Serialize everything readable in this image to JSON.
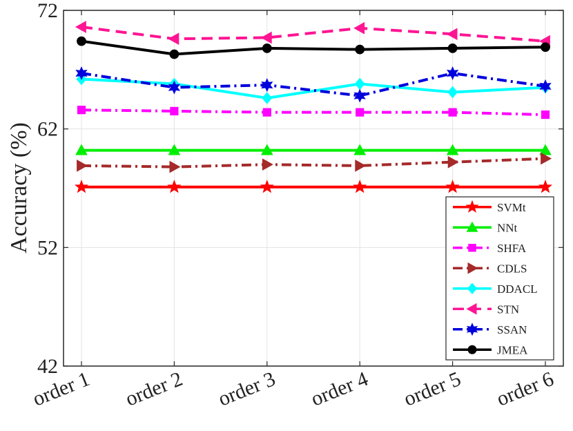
{
  "chart_data": {
    "type": "line",
    "title": "",
    "xlabel": "",
    "ylabel": "Accuracy (%)",
    "categories": [
      "order 1",
      "order 2",
      "order 3",
      "order 4",
      "order 5",
      "order 6"
    ],
    "ylim": [
      42,
      72
    ],
    "yticks": [
      "42",
      "52",
      "62",
      "72"
    ],
    "grid": true,
    "legend_position": "bottom-right",
    "series": [
      {
        "name": "SVMt",
        "values": [
          57.1,
          57.1,
          57.1,
          57.1,
          57.1,
          57.1
        ],
        "color": "#ff0000",
        "dash": "solid",
        "marker": "star5"
      },
      {
        "name": "NNt",
        "values": [
          60.2,
          60.2,
          60.2,
          60.2,
          60.2,
          60.2
        ],
        "color": "#00ee00",
        "dash": "solid",
        "marker": "triangle-up"
      },
      {
        "name": "SHFA",
        "values": [
          63.6,
          63.5,
          63.4,
          63.4,
          63.4,
          63.2
        ],
        "color": "#ff00ff",
        "dash": "dashdot",
        "marker": "square"
      },
      {
        "name": "CDLS",
        "values": [
          58.9,
          58.8,
          59.0,
          58.9,
          59.2,
          59.5
        ],
        "color": "#a52a2a",
        "dash": "dashdot",
        "marker": "triangle-right"
      },
      {
        "name": "DDACL",
        "values": [
          66.2,
          65.8,
          64.6,
          65.8,
          65.1,
          65.5
        ],
        "color": "#00ffff",
        "dash": "solid",
        "marker": "diamond"
      },
      {
        "name": "STN",
        "values": [
          70.6,
          69.6,
          69.7,
          70.5,
          70.0,
          69.4
        ],
        "color": "#ff1493",
        "dash": "dashed",
        "marker": "triangle-left"
      },
      {
        "name": "SSAN",
        "values": [
          66.7,
          65.5,
          65.7,
          64.8,
          66.7,
          65.6
        ],
        "color": "#0000dd",
        "dash": "dashdot",
        "marker": "star6"
      },
      {
        "name": "JMEA",
        "values": [
          69.4,
          68.3,
          68.8,
          68.7,
          68.8,
          68.9
        ],
        "color": "#000000",
        "dash": "solid",
        "marker": "circle"
      }
    ]
  }
}
